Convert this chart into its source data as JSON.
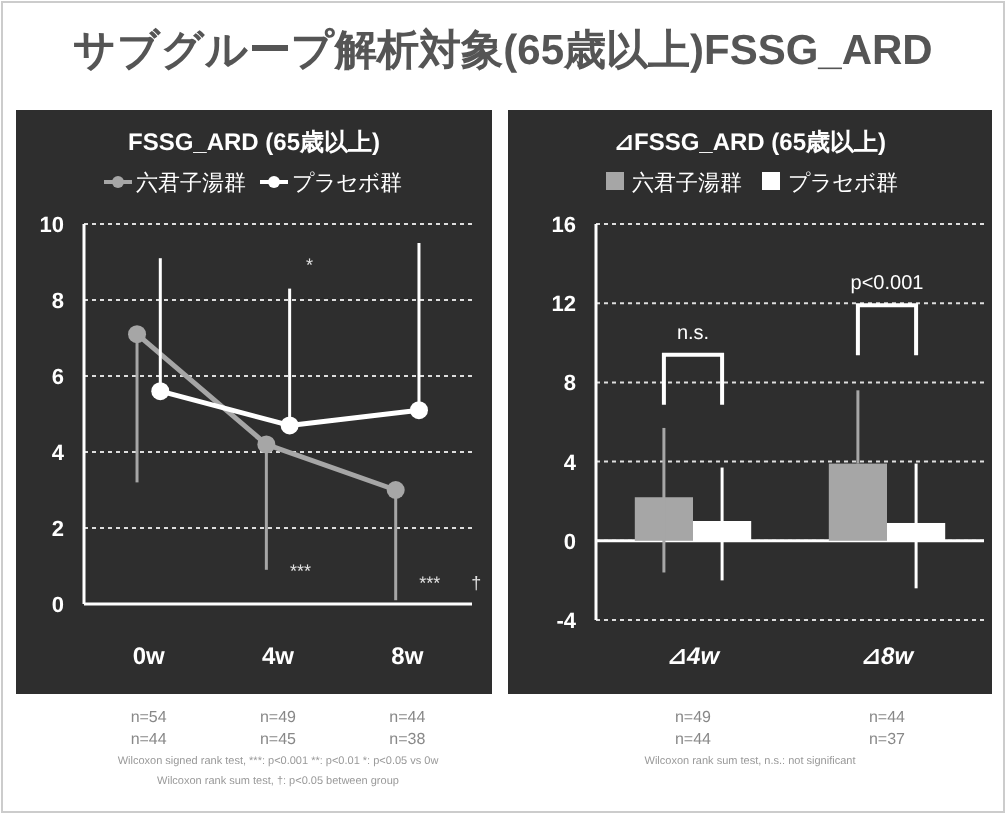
{
  "chart_data": [
    {
      "type": "line",
      "title": "FSSG_ARD (65歳以上)",
      "categories": [
        "0w",
        "4w",
        "8w"
      ],
      "ylim": [
        0,
        10
      ],
      "yticks": [
        0,
        2,
        4,
        6,
        8,
        10
      ],
      "grid": "y",
      "legend": "top",
      "marker": "circle",
      "line_style": "solid",
      "series": [
        {
          "name": "六君子湯群",
          "color": "#a6a6a6",
          "values": [
            7.1,
            4.2,
            3.0
          ],
          "errors": [
            [
              3.2,
              7.1
            ],
            [
              0.9,
              4.2
            ],
            [
              0.1,
              3.0
            ]
          ]
        },
        {
          "name": "プラセボ群",
          "color": "#ffffff",
          "values": [
            5.6,
            4.7,
            5.1
          ],
          "errors": [
            [
              5.6,
              9.1
            ],
            [
              4.7,
              8.3
            ],
            [
              5.1,
              9.5
            ]
          ]
        }
      ],
      "annotations": [
        "サブグループ解析対象(65歳以上)FSSG_ARD",
        "*",
        "***",
        "***",
        "†",
        "n=54",
        "n=49",
        "n=44",
        "n=44",
        "n=45",
        "n=38",
        "Wilcoxon signed rank test, ***: p<0.001 **: p<0.01 *: p<0.05 vs 0w",
        "Wilcoxon rank sum test, †: p<0.05 between group"
      ]
    },
    {
      "type": "bar",
      "title": "⊿FSSG_ARD (65歳以上)",
      "categories": [
        "⊿4w",
        "⊿8w"
      ],
      "ylim": [
        -4,
        16
      ],
      "yticks": [
        -4,
        0,
        4,
        8,
        12,
        16
      ],
      "grid": "y",
      "legend": "top",
      "series": [
        {
          "name": "六君子湯群",
          "color": "#a6a6a6",
          "values": [
            2.2,
            3.9
          ],
          "errors": [
            [
              -1.6,
              5.7
            ],
            [
              3.9,
              7.6
            ]
          ]
        },
        {
          "name": "プラセボ群",
          "color": "#ffffff",
          "values": [
            1.0,
            0.9
          ],
          "errors": [
            [
              -2.0,
              3.7
            ],
            [
              -2.4,
              3.9
            ]
          ]
        }
      ],
      "annotations": [
        "n.s.",
        "p<0.001",
        "n=49",
        "n=44",
        "n=44",
        "n=37",
        "Wilcoxon rank sum test, n.s.: not significant"
      ]
    }
  ]
}
